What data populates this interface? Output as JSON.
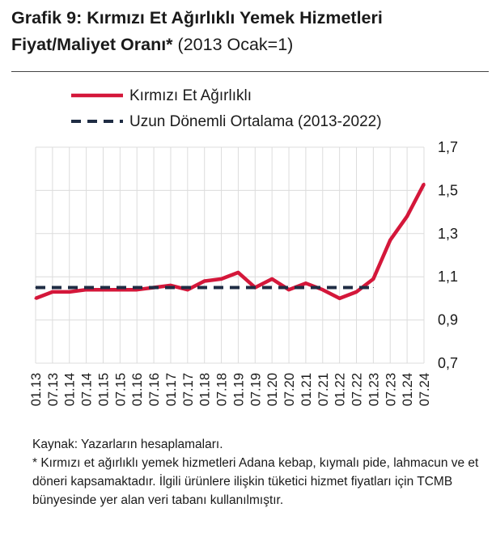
{
  "header": {
    "title_bold": "Grafik 9: Kırmızı Et Ağırlıklı Yemek Hizmetleri Fiyat/Maliyet Oranı*",
    "title_normal": "(2013 Ocak=1)"
  },
  "footer": {
    "source": "Kaynak: Yazarların hesaplamaları.",
    "note": "* Kırmızı et ağırlıklı yemek hizmetleri Adana kebap, kıymalı pide, lahmacun ve et döneri kapsamaktadır. İlgili ürünlere ilişkin tüketici hizmet fiyatları için TCMB bünyesinde yer alan veri tabanı kullanılmıştır."
  },
  "colors": {
    "series": "#d4173a",
    "average": "#1f2d44",
    "grid": "#dcdcdc",
    "text": "#1a1a1a"
  },
  "chart_data": {
    "type": "line",
    "legend_position": "top-left",
    "grid": true,
    "xlabel": "",
    "ylabel": "",
    "ylim": [
      0.7,
      1.7
    ],
    "yticks": [
      0.7,
      0.9,
      1.1,
      1.3,
      1.5,
      1.7
    ],
    "ytick_labels": [
      "0,7",
      "0,9",
      "1,1",
      "1,3",
      "1,5",
      "1,7"
    ],
    "x_tick_labels": [
      "01.13",
      "07.13",
      "01.14",
      "07.14",
      "01.15",
      "07.15",
      "01.16",
      "07.16",
      "01.17",
      "07.17",
      "01.18",
      "07.18",
      "01.19",
      "07.19",
      "01.20",
      "07.20",
      "01.21",
      "07.21",
      "01.22",
      "07.22",
      "01.23",
      "07.23",
      "01.24",
      "07.24"
    ],
    "series": [
      {
        "name": "Kırmızı Et Ağırlıklı",
        "style": "solid",
        "x": [
          "01.13",
          "07.13",
          "01.14",
          "07.14",
          "01.15",
          "07.15",
          "01.16",
          "07.16",
          "01.17",
          "07.17",
          "01.18",
          "07.18",
          "01.19",
          "07.19",
          "01.20",
          "07.20",
          "01.21",
          "07.21",
          "01.22",
          "07.22",
          "01.23",
          "07.23",
          "01.24",
          "07.24"
        ],
        "values": [
          1.0,
          1.03,
          1.03,
          1.04,
          1.04,
          1.04,
          1.04,
          1.05,
          1.06,
          1.04,
          1.08,
          1.09,
          1.12,
          1.05,
          1.09,
          1.04,
          1.07,
          1.04,
          1.0,
          1.03,
          1.09,
          1.27,
          1.38,
          1.53
        ]
      },
      {
        "name": "Uzun Dönemli Ortalama (2013-2022)",
        "style": "dashed",
        "x": [
          "01.13",
          "01.23"
        ],
        "values": [
          1.05,
          1.05
        ]
      }
    ]
  }
}
